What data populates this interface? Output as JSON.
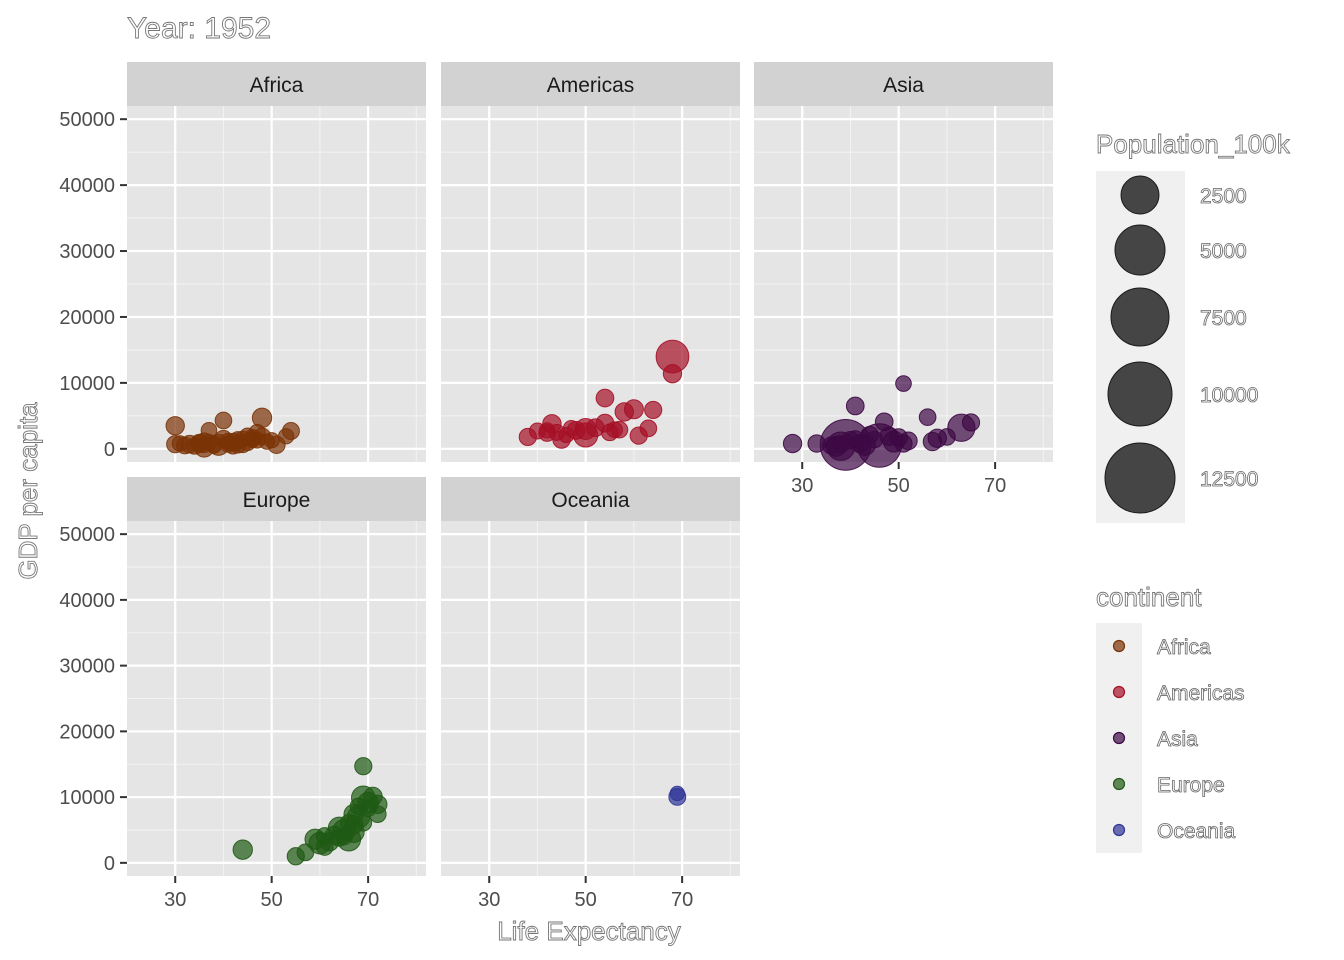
{
  "chart_data": {
    "type": "scatter",
    "title": "Year: 1952",
    "xlabel": "Life Expectancy",
    "ylabel": "GDP per capita",
    "xlim": [
      20,
      82
    ],
    "ylim": [
      -2000,
      52000
    ],
    "x_ticks": [
      30,
      50,
      70
    ],
    "y_ticks": [
      0,
      10000,
      20000,
      30000,
      40000,
      50000
    ],
    "x_tick_labels": [
      "30",
      "50",
      "70"
    ],
    "y_tick_labels": [
      "0",
      "10000",
      "20000",
      "30000",
      "40000",
      "50000"
    ],
    "grid": true,
    "facet_by": "continent",
    "size_legend": {
      "title": "Population_100k",
      "breaks": [
        2500,
        5000,
        7500,
        10000,
        12500
      ],
      "labels": [
        "2500",
        "5000",
        "7500",
        "10000",
        "12500"
      ]
    },
    "color_legend": {
      "title": "continent",
      "entries": [
        {
          "label": "Africa",
          "color": "#7a3305"
        },
        {
          "label": "Americas",
          "color": "#a50f26"
        },
        {
          "label": "Asia",
          "color": "#3d0845"
        },
        {
          "label": "Europe",
          "color": "#1f5a14"
        },
        {
          "label": "Oceania",
          "color": "#2e3596"
        }
      ]
    },
    "panels": [
      {
        "name": "Africa",
        "color": "#7a3305",
        "points": [
          {
            "x": 30,
            "y": 3500,
            "pop": 150
          },
          {
            "x": 30,
            "y": 700,
            "pop": 100
          },
          {
            "x": 31,
            "y": 800,
            "pop": 50
          },
          {
            "x": 32,
            "y": 500,
            "pop": 80
          },
          {
            "x": 33,
            "y": 700,
            "pop": 120
          },
          {
            "x": 34,
            "y": 400,
            "pop": 60
          },
          {
            "x": 35,
            "y": 900,
            "pop": 60
          },
          {
            "x": 35,
            "y": 800,
            "pop": 150
          },
          {
            "x": 36,
            "y": 200,
            "pop": 200
          },
          {
            "x": 36,
            "y": 1200,
            "pop": 60
          },
          {
            "x": 36,
            "y": 600,
            "pop": 40
          },
          {
            "x": 37,
            "y": 1000,
            "pop": 50
          },
          {
            "x": 37,
            "y": 2800,
            "pop": 50
          },
          {
            "x": 38,
            "y": 700,
            "pop": 80
          },
          {
            "x": 38,
            "y": 500,
            "pop": 50
          },
          {
            "x": 39,
            "y": 600,
            "pop": 300
          },
          {
            "x": 40,
            "y": 4300,
            "pop": 80
          },
          {
            "x": 40,
            "y": 1500,
            "pop": 100
          },
          {
            "x": 41,
            "y": 700,
            "pop": 60
          },
          {
            "x": 41,
            "y": 1100,
            "pop": 80
          },
          {
            "x": 42,
            "y": 400,
            "pop": 50
          },
          {
            "x": 42,
            "y": 1000,
            "pop": 120
          },
          {
            "x": 43,
            "y": 600,
            "pop": 70
          },
          {
            "x": 43,
            "y": 1400,
            "pop": 60
          },
          {
            "x": 44,
            "y": 700,
            "pop": 90
          },
          {
            "x": 44,
            "y": 1500,
            "pop": 50
          },
          {
            "x": 45,
            "y": 1000,
            "pop": 80
          },
          {
            "x": 45,
            "y": 2000,
            "pop": 40
          },
          {
            "x": 46,
            "y": 1400,
            "pop": 60
          },
          {
            "x": 46,
            "y": 1700,
            "pop": 70
          },
          {
            "x": 47,
            "y": 1300,
            "pop": 50
          },
          {
            "x": 47,
            "y": 2500,
            "pop": 60
          },
          {
            "x": 48,
            "y": 1900,
            "pop": 80
          },
          {
            "x": 48,
            "y": 4700,
            "pop": 200
          },
          {
            "x": 49,
            "y": 1100,
            "pop": 40
          },
          {
            "x": 50,
            "y": 1300,
            "pop": 40
          },
          {
            "x": 51,
            "y": 600,
            "pop": 100
          },
          {
            "x": 53,
            "y": 1900,
            "pop": 40
          },
          {
            "x": 54,
            "y": 2700,
            "pop": 90
          }
        ]
      },
      {
        "name": "Americas",
        "color": "#a50f26",
        "points": [
          {
            "x": 38,
            "y": 1800,
            "pop": 100
          },
          {
            "x": 40,
            "y": 2700,
            "pop": 60
          },
          {
            "x": 42,
            "y": 2400,
            "pop": 80
          },
          {
            "x": 42,
            "y": 2800,
            "pop": 40
          },
          {
            "x": 43,
            "y": 3800,
            "pop": 150
          },
          {
            "x": 44,
            "y": 2500,
            "pop": 60
          },
          {
            "x": 45,
            "y": 1400,
            "pop": 110
          },
          {
            "x": 46,
            "y": 2100,
            "pop": 40
          },
          {
            "x": 47,
            "y": 3100,
            "pop": 50
          },
          {
            "x": 48,
            "y": 2800,
            "pop": 120
          },
          {
            "x": 50,
            "y": 3000,
            "pop": 300
          },
          {
            "x": 50,
            "y": 2100,
            "pop": 550
          },
          {
            "x": 52,
            "y": 3200,
            "pop": 120
          },
          {
            "x": 54,
            "y": 7700,
            "pop": 120
          },
          {
            "x": 54,
            "y": 3900,
            "pop": 120
          },
          {
            "x": 55,
            "y": 2500,
            "pop": 80
          },
          {
            "x": 56,
            "y": 2900,
            "pop": 50
          },
          {
            "x": 57,
            "y": 2900,
            "pop": 80
          },
          {
            "x": 58,
            "y": 5600,
            "pop": 150
          },
          {
            "x": 60,
            "y": 6000,
            "pop": 180
          },
          {
            "x": 61,
            "y": 2000,
            "pop": 100
          },
          {
            "x": 63,
            "y": 3100,
            "pop": 80
          },
          {
            "x": 64,
            "y": 5900,
            "pop": 100
          },
          {
            "x": 68,
            "y": 11400,
            "pop": 150
          },
          {
            "x": 68,
            "y": 13990,
            "pop": 1600
          }
        ]
      },
      {
        "name": "Asia",
        "color": "#3d0845",
        "points": [
          {
            "x": 28,
            "y": 800,
            "pop": 150
          },
          {
            "x": 33,
            "y": 800,
            "pop": 110
          },
          {
            "x": 36,
            "y": 500,
            "pop": 90
          },
          {
            "x": 37,
            "y": 400,
            "pop": 250
          },
          {
            "x": 38,
            "y": 700,
            "pop": 90
          },
          {
            "x": 38,
            "y": 400,
            "pop": 1000
          },
          {
            "x": 39,
            "y": 600,
            "pop": 5600
          },
          {
            "x": 40,
            "y": 1300,
            "pop": 110
          },
          {
            "x": 41,
            "y": 1500,
            "pop": 70
          },
          {
            "x": 41,
            "y": 6500,
            "pop": 120
          },
          {
            "x": 42,
            "y": 800,
            "pop": 150
          },
          {
            "x": 43,
            "y": 600,
            "pop": 300
          },
          {
            "x": 44,
            "y": 2100,
            "pop": 100
          },
          {
            "x": 45,
            "y": 1400,
            "pop": 70
          },
          {
            "x": 46,
            "y": 500,
            "pop": 3700
          },
          {
            "x": 47,
            "y": 4100,
            "pop": 120
          },
          {
            "x": 48,
            "y": 1900,
            "pop": 150
          },
          {
            "x": 49,
            "y": 1100,
            "pop": 300
          },
          {
            "x": 50,
            "y": 1700,
            "pop": 120
          },
          {
            "x": 51,
            "y": 800,
            "pop": 100
          },
          {
            "x": 51,
            "y": 9900,
            "pop": 50
          },
          {
            "x": 52,
            "y": 1200,
            "pop": 120
          },
          {
            "x": 56,
            "y": 4800,
            "pop": 80
          },
          {
            "x": 57,
            "y": 1100,
            "pop": 150
          },
          {
            "x": 58,
            "y": 1600,
            "pop": 150
          },
          {
            "x": 60,
            "y": 1800,
            "pop": 80
          },
          {
            "x": 63,
            "y": 3200,
            "pop": 860
          },
          {
            "x": 65,
            "y": 4000,
            "pop": 100
          }
        ]
      },
      {
        "name": "Europe",
        "color": "#1f5a14",
        "points": [
          {
            "x": 44,
            "y": 2000,
            "pop": 200
          },
          {
            "x": 55,
            "y": 1000,
            "pop": 100
          },
          {
            "x": 57,
            "y": 1600,
            "pop": 80
          },
          {
            "x": 59,
            "y": 3600,
            "pop": 250
          },
          {
            "x": 60,
            "y": 3000,
            "pop": 350
          },
          {
            "x": 61,
            "y": 2400,
            "pop": 80
          },
          {
            "x": 61,
            "y": 4100,
            "pop": 80
          },
          {
            "x": 62,
            "y": 3200,
            "pop": 150
          },
          {
            "x": 63,
            "y": 4200,
            "pop": 150
          },
          {
            "x": 64,
            "y": 3800,
            "pop": 80
          },
          {
            "x": 64,
            "y": 5300,
            "pop": 350
          },
          {
            "x": 65,
            "y": 4900,
            "pop": 400
          },
          {
            "x": 65,
            "y": 4000,
            "pop": 80
          },
          {
            "x": 66,
            "y": 6100,
            "pop": 80
          },
          {
            "x": 66,
            "y": 3600,
            "pop": 500
          },
          {
            "x": 67,
            "y": 5800,
            "pop": 150
          },
          {
            "x": 67,
            "y": 7400,
            "pop": 200
          },
          {
            "x": 67,
            "y": 4700,
            "pop": 300
          },
          {
            "x": 68,
            "y": 7000,
            "pop": 400
          },
          {
            "x": 68,
            "y": 8600,
            "pop": 80
          },
          {
            "x": 69,
            "y": 9900,
            "pop": 500
          },
          {
            "x": 69,
            "y": 6100,
            "pop": 80
          },
          {
            "x": 69,
            "y": 14700,
            "pop": 100
          },
          {
            "x": 70,
            "y": 8300,
            "pop": 80
          },
          {
            "x": 70,
            "y": 9100,
            "pop": 300
          },
          {
            "x": 71,
            "y": 10100,
            "pop": 150
          },
          {
            "x": 72,
            "y": 7400,
            "pop": 80
          },
          {
            "x": 72,
            "y": 8900,
            "pop": 150
          }
        ]
      },
      {
        "name": "Oceania",
        "color": "#2e3596",
        "points": [
          {
            "x": 69,
            "y": 10040,
            "pop": 90
          },
          {
            "x": 69,
            "y": 10560,
            "pop": 20
          }
        ]
      }
    ]
  }
}
